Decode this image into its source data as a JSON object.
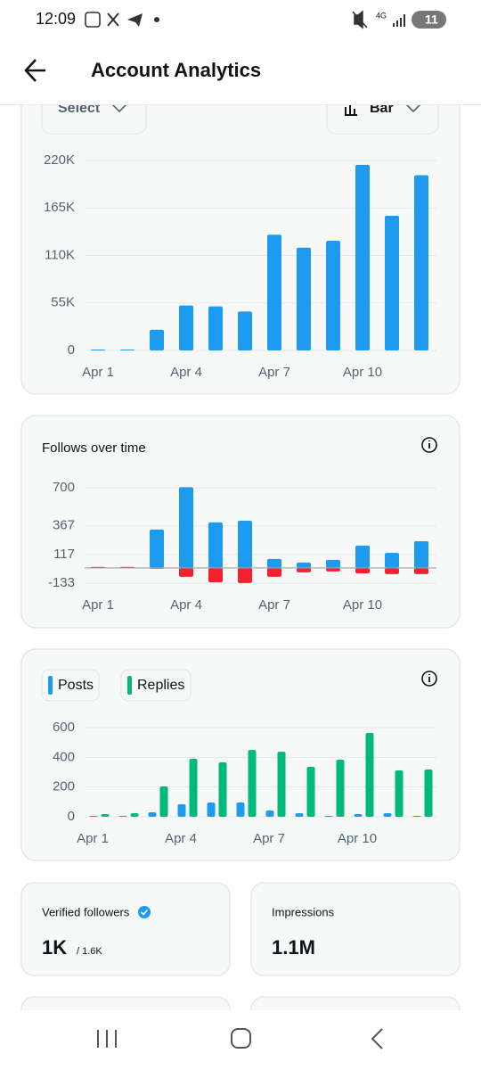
{
  "status_bar": {
    "time": "12:09",
    "network": "4G",
    "battery": "11"
  },
  "header": {
    "title": "Account Analytics"
  },
  "controls": {
    "select": "Select",
    "chart_type": "Bar"
  },
  "chart_data": [
    {
      "type": "bar",
      "categories": [
        "Apr 1",
        null,
        null,
        "Apr 4",
        null,
        null,
        "Apr 7",
        null,
        null,
        "Apr 10",
        null,
        null
      ],
      "series": [
        {
          "color": "#1d9bf0",
          "values": [
            1000,
            1000,
            24000,
            52000,
            51000,
            45000,
            134000,
            119000,
            127000,
            215000,
            156000,
            203000
          ]
        }
      ],
      "ylim": [
        0,
        220000
      ],
      "yticks": [
        0,
        {
          "value": 55000,
          "label": "55K"
        },
        {
          "value": 110000,
          "label": "110K"
        },
        {
          "value": 165000,
          "label": "165K"
        },
        {
          "value": 220000,
          "label": "220K"
        }
      ],
      "grid": true
    },
    {
      "type": "bar",
      "title": "Follows over time",
      "categories": [
        "Apr 1",
        null,
        null,
        "Apr 4",
        null,
        null,
        "Apr 7",
        null,
        null,
        "Apr 10",
        null,
        null
      ],
      "series": [
        {
          "color": "#1d9bf0",
          "values": [
            3,
            3,
            335,
            705,
            397,
            412,
            78,
            47,
            70,
            195,
            132,
            233
          ]
        },
        {
          "color": "#f4212e",
          "values": [
            0,
            0,
            -3,
            -78,
            -125,
            -132,
            -78,
            -39,
            -31,
            -47,
            -54,
            -54
          ]
        }
      ],
      "ylim": [
        -133,
        700
      ],
      "yticks": [
        -133,
        117,
        367,
        700
      ],
      "grid": true
    },
    {
      "type": "bar",
      "categories": [
        "Apr 1",
        null,
        null,
        "Apr 4",
        null,
        null,
        "Apr 7",
        null,
        null,
        "Apr 10",
        null,
        null
      ],
      "series": [
        {
          "name": "Posts",
          "color": "#1d9bf0",
          "values": [
            0,
            2,
            30,
            84,
            96,
            96,
            42,
            24,
            2,
            18,
            24,
            6
          ]
        },
        {
          "name": "Replies",
          "color": "#00ba7c",
          "values": [
            18,
            24,
            204,
            390,
            366,
            450,
            438,
            336,
            384,
            564,
            312,
            318
          ]
        }
      ],
      "ylim": [
        0,
        600
      ],
      "yticks": [
        0,
        200,
        400,
        600
      ],
      "grid": true
    }
  ],
  "stats": [
    {
      "label": "Verified followers",
      "value": "1K",
      "total": "/ 1.6K"
    },
    {
      "label": "Impressions",
      "value": "1.1M"
    }
  ]
}
